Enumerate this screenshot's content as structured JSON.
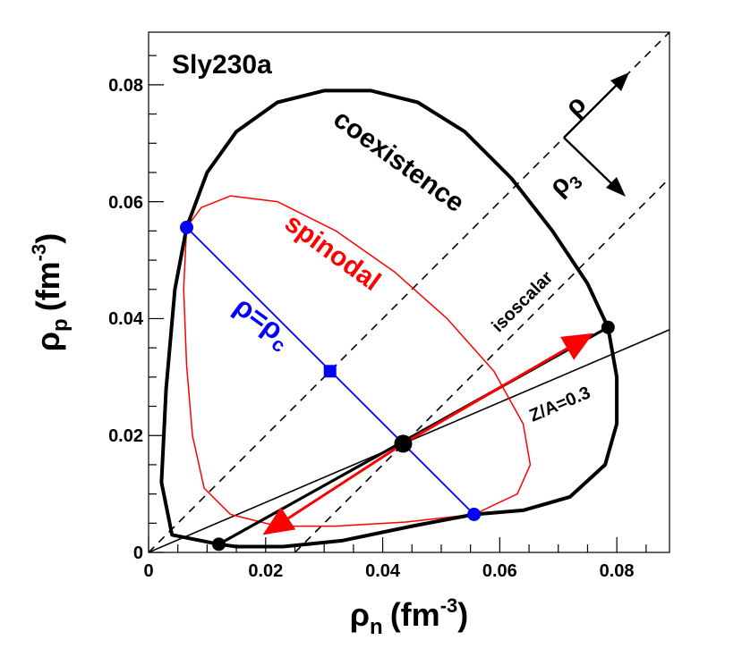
{
  "chart_data": {
    "type": "line",
    "title": "Sly230a",
    "xlabel": {
      "main": "ρ",
      "sub": "n",
      "unit": "(fm",
      "exp": "-3",
      "close": ")"
    },
    "ylabel": {
      "main": "ρ",
      "sub": "p",
      "unit": "(fm",
      "exp": "-3",
      "close": ")"
    },
    "xlim": [
      0,
      0.089
    ],
    "ylim": [
      0,
      0.089
    ],
    "xticks": [
      0,
      0.02,
      0.04,
      0.06,
      0.08
    ],
    "yticks": [
      0,
      0.02,
      0.04,
      0.06,
      0.08
    ],
    "xtick_labels": [
      "0",
      "0.02",
      "0.04",
      "0.06",
      "0.08"
    ],
    "ytick_labels": [
      "0",
      "0.02",
      "0.04",
      "0.06",
      "0.08"
    ],
    "colors": {
      "coexistence": "#000000",
      "spinodal": "#ff0000",
      "line_rho_c": "#0000ff",
      "arrow": "#ff0000"
    },
    "series": [
      {
        "name": "coexistence",
        "points": [
          [
            0.012,
            0.0014
          ],
          [
            0.004,
            0.003
          ],
          [
            0.0022,
            0.012
          ],
          [
            0.003,
            0.028
          ],
          [
            0.0045,
            0.045
          ],
          [
            0.0065,
            0.0556
          ],
          [
            0.01,
            0.065
          ],
          [
            0.015,
            0.072
          ],
          [
            0.022,
            0.077
          ],
          [
            0.03,
            0.079
          ],
          [
            0.038,
            0.079
          ],
          [
            0.046,
            0.077
          ],
          [
            0.054,
            0.072
          ],
          [
            0.062,
            0.064
          ],
          [
            0.069,
            0.055
          ],
          [
            0.075,
            0.046
          ],
          [
            0.0785,
            0.0385
          ],
          [
            0.08,
            0.03
          ],
          [
            0.08,
            0.022
          ],
          [
            0.078,
            0.015
          ],
          [
            0.072,
            0.0095
          ],
          [
            0.064,
            0.0072
          ],
          [
            0.0556,
            0.0065
          ],
          [
            0.045,
            0.0045
          ],
          [
            0.033,
            0.002
          ],
          [
            0.023,
            0.001
          ],
          [
            0.015,
            0.001
          ],
          [
            0.012,
            0.0014
          ]
        ]
      },
      {
        "name": "spinodal",
        "points": [
          [
            0.0065,
            0.0556
          ],
          [
            0.006,
            0.045
          ],
          [
            0.0065,
            0.032
          ],
          [
            0.0075,
            0.02
          ],
          [
            0.0095,
            0.011
          ],
          [
            0.014,
            0.0065
          ],
          [
            0.022,
            0.0045
          ],
          [
            0.032,
            0.0045
          ],
          [
            0.044,
            0.0052
          ],
          [
            0.0556,
            0.0065
          ],
          [
            0.063,
            0.01
          ],
          [
            0.0652,
            0.015
          ],
          [
            0.064,
            0.022
          ],
          [
            0.059,
            0.031
          ],
          [
            0.051,
            0.04
          ],
          [
            0.042,
            0.048
          ],
          [
            0.032,
            0.055
          ],
          [
            0.022,
            0.06
          ],
          [
            0.014,
            0.061
          ],
          [
            0.009,
            0.059
          ],
          [
            0.0065,
            0.0556
          ]
        ]
      },
      {
        "name": "ρ=ρc",
        "points": [
          [
            0.0065,
            0.0556
          ],
          [
            0.0556,
            0.0065
          ]
        ]
      },
      {
        "name": "isoscalar",
        "points": [
          [
            0.0,
            0.0
          ],
          [
            0.089,
            0.089
          ]
        ]
      },
      {
        "name": "parallel dashed",
        "points": [
          [
            0.025,
            0.0
          ],
          [
            0.089,
            0.064
          ]
        ]
      },
      {
        "name": "Z/A=0.3",
        "points": [
          [
            0.0,
            0.0
          ],
          [
            0.089,
            0.0381
          ]
        ]
      },
      {
        "name": "tie line",
        "points": [
          [
            0.012,
            0.0014
          ],
          [
            0.0785,
            0.0385
          ]
        ]
      }
    ],
    "markers": [
      {
        "name": "coexistence-point-low",
        "x": 0.012,
        "y": 0.0014,
        "color": "#000000",
        "shape": "circle"
      },
      {
        "name": "coexistence-point-high",
        "x": 0.0785,
        "y": 0.0385,
        "color": "#000000",
        "shape": "circle"
      },
      {
        "name": "central-point",
        "x": 0.0435,
        "y": 0.0186,
        "color": "#000000",
        "shape": "circle"
      },
      {
        "name": "spinodal-point-upper",
        "x": 0.0065,
        "y": 0.0556,
        "color": "#0000ff",
        "shape": "circle"
      },
      {
        "name": "spinodal-point-lower",
        "x": 0.0556,
        "y": 0.0065,
        "color": "#0000ff",
        "shape": "circle"
      },
      {
        "name": "isoscalar-square-point",
        "x": 0.031,
        "y": 0.031,
        "color": "#0000ff",
        "shape": "square"
      }
    ],
    "red_arrow": {
      "from": [
        0.0435,
        0.0186
      ],
      "to_up": [
        0.076,
        0.0375
      ],
      "to_down": [
        0.0195,
        0.003
      ]
    },
    "annotations": {
      "coexistence": "coexistence",
      "spinodal": "spinodal",
      "rho_c_main": "ρ=ρ",
      "rho_c_sub": "c",
      "isoscalar": "isoscalar",
      "za": "Z/A=0.3",
      "rho": "ρ",
      "rho3_main": "ρ",
      "rho3_sub": "3"
    }
  }
}
